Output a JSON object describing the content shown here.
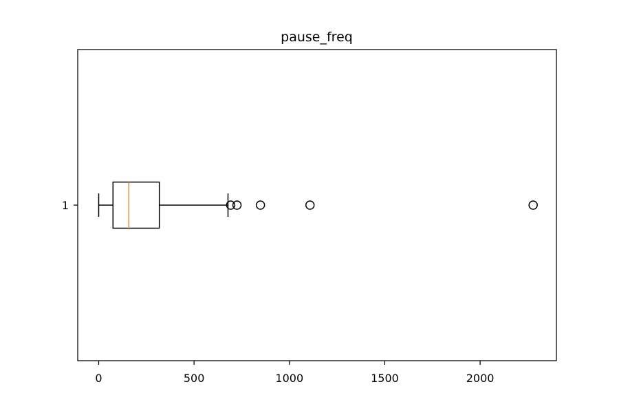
{
  "chart_data": {
    "type": "boxplot",
    "orientation": "horizontal",
    "title": "pause_freq",
    "xlabel": "",
    "ylabel": "",
    "xlim": [
      -110,
      2400
    ],
    "x_ticks": [
      0,
      500,
      1000,
      1500,
      2000
    ],
    "x_tick_labels": [
      "0",
      "500",
      "1000",
      "1500",
      "2000"
    ],
    "categories": [
      "1"
    ],
    "boxes": [
      {
        "label": "1",
        "whisker_low": 0,
        "q1": 75,
        "median": 158,
        "q3": 318,
        "whisker_high": 678,
        "outliers": [
          692,
          725,
          848,
          1108,
          2278
        ]
      }
    ],
    "grid": false,
    "colors": {
      "box": "#000000",
      "median": "#ff7f0e",
      "outlier": "#000000"
    }
  }
}
